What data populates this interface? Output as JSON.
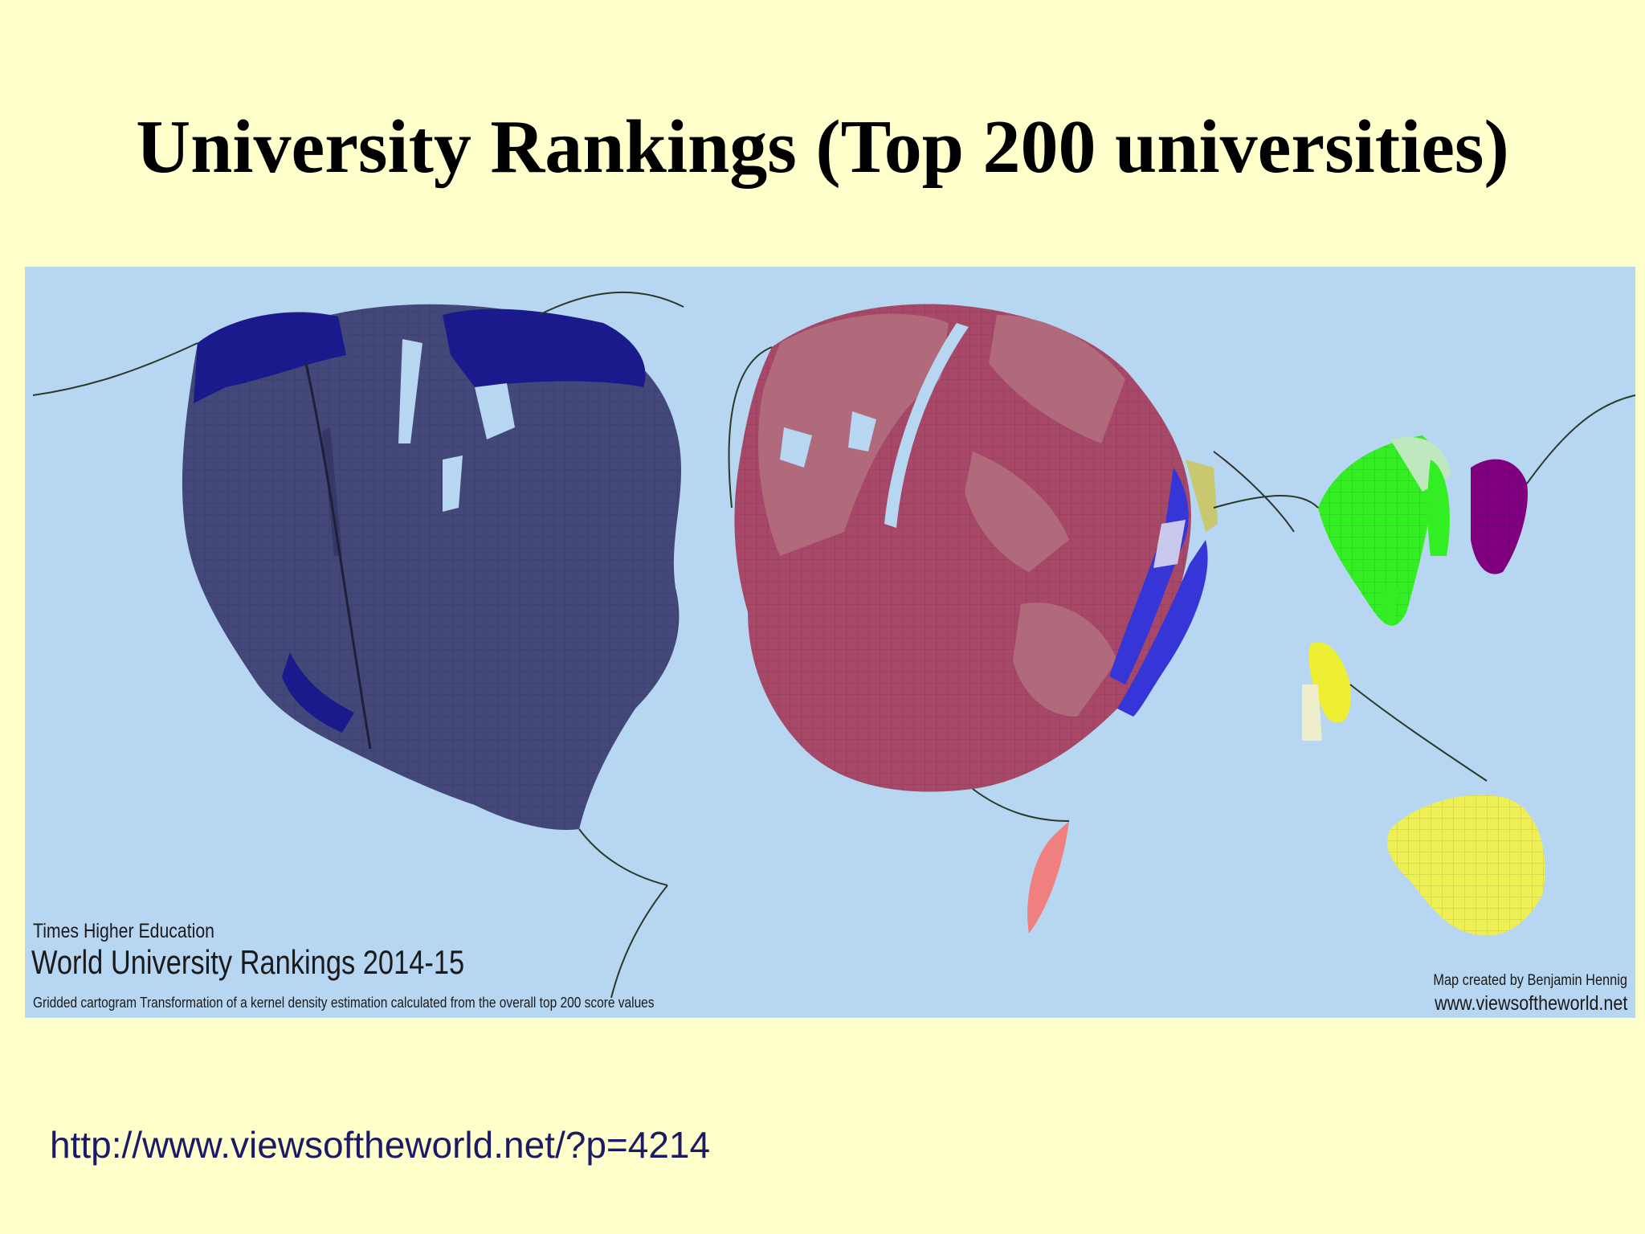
{
  "slide": {
    "title": "University Rankings (Top 200 universities)",
    "source_url": "http://www.viewsoftheworld.net/?p=4214"
  },
  "map": {
    "publisher": "Times Higher Education",
    "title": "World University Rankings 2014-15",
    "description": "Gridded cartogram Transformation of a kernel density estimation calculated from the overall top 200 score values",
    "credit": "Map created by Benjamin Hennig",
    "website": "www.viewsoftheworld.net",
    "colors": {
      "ocean": "#b6d6f2",
      "north_america": "#44477a",
      "canada_accent": "#1a1a8c",
      "europe": "#a84868",
      "europe_light": "#b06a7c",
      "eastern_europe": "#3535d8",
      "east_asia": "#33ee22",
      "korea_japan": "#800080",
      "southeast_asia": "#eeee33",
      "oceania": "#eeee55",
      "middle_east": "#c8c870",
      "africa": "#f08080"
    }
  }
}
